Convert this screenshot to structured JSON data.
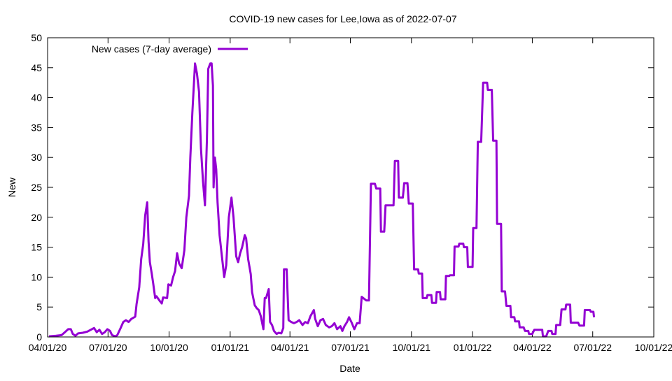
{
  "chart_data": {
    "type": "line",
    "title": "COVID-19 new cases for Lee,Iowa as of 2022-07-07",
    "xlabel": "Date",
    "ylabel": "New",
    "x_unit": "days since 04/01/20",
    "xlim": [
      0,
      913
    ],
    "ylim": [
      0,
      50
    ],
    "yticks": [
      0,
      5,
      10,
      15,
      20,
      25,
      30,
      35,
      40,
      45,
      50
    ],
    "xticks": [
      {
        "day": 0,
        "label": "04/01/20"
      },
      {
        "day": 91,
        "label": "07/01/20"
      },
      {
        "day": 183,
        "label": "10/01/20"
      },
      {
        "day": 275,
        "label": "01/01/21"
      },
      {
        "day": 365,
        "label": "04/01/21"
      },
      {
        "day": 456,
        "label": "07/01/21"
      },
      {
        "day": 548,
        "label": "10/01/21"
      },
      {
        "day": 640,
        "label": "01/01/22"
      },
      {
        "day": 730,
        "label": "04/01/22"
      },
      {
        "day": 821,
        "label": "07/01/22"
      },
      {
        "day": 913,
        "label": "10/01/22"
      }
    ],
    "grid": false,
    "legend_position": "top-left",
    "series": [
      {
        "name": "New cases (7-day average)",
        "color": "#9400d3",
        "points": [
          [
            2,
            0.1
          ],
          [
            13,
            0.2
          ],
          [
            21,
            0.3
          ],
          [
            26,
            0.8
          ],
          [
            31,
            1.3
          ],
          [
            35,
            1.3
          ],
          [
            38,
            0.5
          ],
          [
            42,
            0.2
          ],
          [
            46,
            0.6
          ],
          [
            53,
            0.7
          ],
          [
            60,
            0.9
          ],
          [
            65,
            1.2
          ],
          [
            70,
            1.5
          ],
          [
            74,
            0.8
          ],
          [
            78,
            1.2
          ],
          [
            82,
            0.5
          ],
          [
            86,
            0.8
          ],
          [
            90,
            1.3
          ],
          [
            94,
            1.0
          ],
          [
            97,
            0.3
          ],
          [
            102,
            0.1
          ],
          [
            105,
            0.3
          ],
          [
            110,
            1.5
          ],
          [
            114,
            2.5
          ],
          [
            118,
            2.8
          ],
          [
            122,
            2.5
          ],
          [
            126,
            3.0
          ],
          [
            132,
            3.4
          ],
          [
            134,
            5.5
          ],
          [
            138,
            8.3
          ],
          [
            141,
            13
          ],
          [
            144,
            15.5
          ],
          [
            147,
            20.3
          ],
          [
            150,
            22.5
          ],
          [
            152,
            16
          ],
          [
            154,
            12.5
          ],
          [
            157,
            10.5
          ],
          [
            159,
            9
          ],
          [
            162,
            6.5
          ],
          [
            164,
            6.8
          ],
          [
            169,
            6
          ],
          [
            172,
            5.6
          ],
          [
            174,
            6.6
          ],
          [
            180,
            6.5
          ],
          [
            182,
            8.8
          ],
          [
            186,
            8.6
          ],
          [
            189,
            10
          ],
          [
            192,
            11
          ],
          [
            195,
            14
          ],
          [
            198,
            12.3
          ],
          [
            202,
            11.5
          ],
          [
            206,
            14.5
          ],
          [
            209,
            20
          ],
          [
            213,
            23.6
          ],
          [
            215,
            30
          ],
          [
            218,
            37.5
          ],
          [
            222,
            45.7
          ],
          [
            225,
            44
          ],
          [
            228,
            41
          ],
          [
            231,
            31.5
          ],
          [
            234,
            26
          ],
          [
            237,
            22
          ],
          [
            240,
            33
          ],
          [
            242,
            44.8
          ],
          [
            245,
            45.7
          ],
          [
            247,
            45.7
          ],
          [
            249,
            42
          ],
          [
            250,
            25
          ],
          [
            252,
            30
          ],
          [
            254,
            28
          ],
          [
            256,
            22.5
          ],
          [
            259,
            17
          ],
          [
            262,
            14
          ],
          [
            266,
            10
          ],
          [
            269,
            12
          ],
          [
            273,
            20
          ],
          [
            277,
            23.3
          ],
          [
            280,
            20
          ],
          [
            284,
            13.5
          ],
          [
            287,
            12.5
          ],
          [
            290,
            14
          ],
          [
            293,
            15
          ],
          [
            297,
            17
          ],
          [
            299,
            16.5
          ],
          [
            302,
            13
          ],
          [
            306,
            10.5
          ],
          [
            308,
            7.5
          ],
          [
            312,
            5.3
          ],
          [
            315,
            4.8
          ],
          [
            318,
            4.5
          ],
          [
            321,
            3.5
          ],
          [
            325,
            1.3
          ],
          [
            327,
            6.5
          ],
          [
            329,
            6.5
          ],
          [
            333,
            8
          ],
          [
            335,
            2.5
          ],
          [
            338,
            2.0
          ],
          [
            341,
            1.0
          ],
          [
            345,
            0.5
          ],
          [
            348,
            0.7
          ],
          [
            352,
            0.6
          ],
          [
            355,
            1.5
          ],
          [
            356,
            11.3
          ],
          [
            360,
            11.3
          ],
          [
            363,
            2.8
          ],
          [
            367,
            2.5
          ],
          [
            371,
            2.3
          ],
          [
            375,
            2.5
          ],
          [
            379,
            2.8
          ],
          [
            384,
            2.0
          ],
          [
            388,
            2.5
          ],
          [
            392,
            2.3
          ],
          [
            396,
            3.5
          ],
          [
            401,
            4.5
          ],
          [
            403,
            3
          ],
          [
            407,
            1.8
          ],
          [
            411,
            2.8
          ],
          [
            415,
            3
          ],
          [
            419,
            2
          ],
          [
            424,
            1.6
          ],
          [
            428,
            1.8
          ],
          [
            432,
            2.3
          ],
          [
            436,
            1.3
          ],
          [
            441,
            1.8
          ],
          [
            444,
            1
          ],
          [
            447,
            1.8
          ],
          [
            451,
            2.5
          ],
          [
            454,
            3.3
          ],
          [
            458,
            2.4
          ],
          [
            462,
            1.3
          ],
          [
            466,
            2.3
          ],
          [
            470,
            2.3
          ],
          [
            473,
            6.7
          ],
          [
            480,
            6.1
          ],
          [
            484,
            6.1
          ],
          [
            487,
            25.6
          ],
          [
            493,
            25.6
          ],
          [
            495,
            24.8
          ],
          [
            501,
            24.8
          ],
          [
            502,
            17.6
          ],
          [
            507,
            17.6
          ],
          [
            509,
            22
          ],
          [
            521,
            22
          ],
          [
            523,
            29.4
          ],
          [
            528,
            29.4
          ],
          [
            529,
            23.3
          ],
          [
            535,
            23.3
          ],
          [
            537,
            25.7
          ],
          [
            542,
            25.7
          ],
          [
            544,
            22.3
          ],
          [
            550,
            22.3
          ],
          [
            552,
            11.3
          ],
          [
            558,
            11.3
          ],
          [
            559,
            10.6
          ],
          [
            564,
            10.6
          ],
          [
            565,
            6.5
          ],
          [
            571,
            6.5
          ],
          [
            572,
            7
          ],
          [
            578,
            7
          ],
          [
            579,
            5.7
          ],
          [
            585,
            5.7
          ],
          [
            586,
            7.5
          ],
          [
            591,
            7.5
          ],
          [
            592,
            6.3
          ],
          [
            599,
            6.3
          ],
          [
            600,
            10.2
          ],
          [
            605,
            10.2
          ],
          [
            606,
            10.3
          ],
          [
            612,
            10.3
          ],
          [
            613,
            15.1
          ],
          [
            619,
            15.1
          ],
          [
            620,
            15.6
          ],
          [
            626,
            15.6
          ],
          [
            627,
            15
          ],
          [
            632,
            15
          ],
          [
            633,
            11.7
          ],
          [
            640,
            11.7
          ],
          [
            641,
            18.2
          ],
          [
            646,
            18.2
          ],
          [
            648,
            32.6
          ],
          [
            653,
            32.6
          ],
          [
            656,
            42.5
          ],
          [
            662,
            42.5
          ],
          [
            663,
            41.3
          ],
          [
            669,
            41.3
          ],
          [
            671,
            32.8
          ],
          [
            676,
            32.8
          ],
          [
            677,
            18.9
          ],
          [
            683,
            18.9
          ],
          [
            684,
            7.6
          ],
          [
            689,
            7.6
          ],
          [
            691,
            5.2
          ],
          [
            697,
            5.2
          ],
          [
            698,
            3.3
          ],
          [
            703,
            3.3
          ],
          [
            704,
            2.6
          ],
          [
            710,
            2.6
          ],
          [
            711,
            1.6
          ],
          [
            717,
            1.6
          ],
          [
            719,
            1
          ],
          [
            724,
            1
          ],
          [
            725,
            0.5
          ],
          [
            730,
            0.5
          ],
          [
            733,
            1.2
          ],
          [
            745,
            1.2
          ],
          [
            746,
            0.1
          ],
          [
            751,
            0.1
          ],
          [
            754,
            1
          ],
          [
            759,
            1
          ],
          [
            760,
            0.5
          ],
          [
            765,
            0.5
          ],
          [
            766,
            2
          ],
          [
            772,
            2
          ],
          [
            774,
            4.6
          ],
          [
            780,
            4.6
          ],
          [
            781,
            5.4
          ],
          [
            787,
            5.4
          ],
          [
            788,
            2.4
          ],
          [
            799,
            2.4
          ],
          [
            801,
            1.9
          ],
          [
            808,
            1.9
          ],
          [
            809,
            4.5
          ],
          [
            817,
            4.5
          ],
          [
            818,
            4.2
          ],
          [
            822,
            4.2
          ],
          [
            823,
            3.3
          ]
        ]
      }
    ]
  }
}
